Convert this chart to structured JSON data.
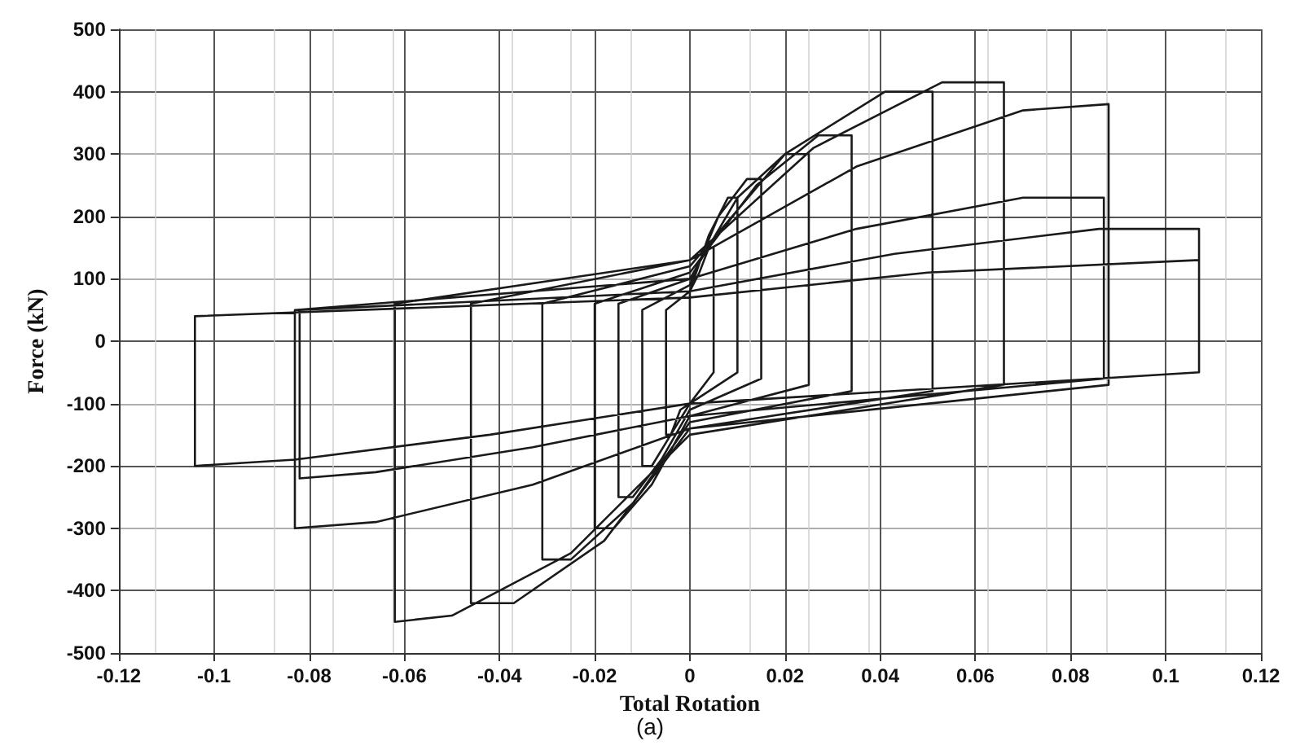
{
  "chart_data": {
    "type": "line",
    "xlabel": "Total Rotation",
    "ylabel": "Force (kN)",
    "annotations": [
      "(a)"
    ],
    "xlim": [
      -0.12,
      0.12
    ],
    "xticks": [
      -0.12,
      -0.1,
      -0.08,
      -0.06,
      -0.04,
      -0.02,
      0,
      0.02,
      0.04,
      0.06,
      0.08,
      0.1,
      0.12
    ],
    "ylim": [
      -500,
      500
    ],
    "yticks": [
      -500,
      -400,
      -300,
      -200,
      -100,
      0,
      100,
      200,
      300,
      400,
      500
    ],
    "grid": true,
    "marker": "none",
    "line_style": "solid",
    "series": [
      {
        "color": "#1a1a1a",
        "x": [
          0,
          0,
          0.002,
          0.004,
          0.005,
          0.005,
          0,
          -0.002,
          -0.004,
          -0.005,
          -0.005,
          0,
          0.004,
          0.008,
          0.01,
          0.01,
          0,
          -0.004,
          -0.008,
          -0.01,
          -0.01,
          0,
          0.006,
          0.012,
          0.015,
          0.015,
          0,
          -0.006,
          -0.012,
          -0.015,
          -0.015,
          0,
          0.01,
          0.02,
          0.025,
          0.025,
          0,
          -0.008,
          -0.016,
          -0.02,
          -0.02,
          0,
          0.014,
          0.027,
          0.034,
          0.034,
          0,
          -0.012,
          -0.025,
          -0.031,
          -0.031,
          0,
          0.02,
          0.041,
          0.051,
          0.051,
          0,
          -0.018,
          -0.037,
          -0.046,
          -0.046,
          0,
          0.026,
          0.053,
          0.066,
          0.066,
          0,
          -0.025,
          -0.05,
          -0.062,
          -0.062,
          0,
          0.035,
          0.07,
          0.088,
          0.088,
          0,
          -0.033,
          -0.066,
          -0.083,
          -0.083,
          0,
          0.035,
          0.07,
          0.087,
          0.087,
          0,
          -0.033,
          -0.066,
          -0.082,
          -0.082,
          0,
          0.043,
          0.086,
          0.107,
          0.107,
          0,
          -0.042,
          -0.083,
          -0.104,
          -0.104,
          0,
          0.05,
          0.107
        ],
        "values": [
          0,
          80,
          110,
          150,
          150,
          -50,
          -100,
          -110,
          -150,
          -150,
          50,
          80,
          170,
          230,
          230,
          -50,
          -100,
          -150,
          -200,
          -200,
          50,
          90,
          200,
          260,
          260,
          -60,
          -110,
          -190,
          -250,
          -250,
          60,
          100,
          230,
          300,
          300,
          -70,
          -120,
          -230,
          -300,
          -300,
          60,
          110,
          250,
          330,
          330,
          -80,
          -130,
          -260,
          -350,
          -350,
          60,
          120,
          300,
          400,
          400,
          -80,
          -140,
          -320,
          -420,
          -420,
          60,
          130,
          310,
          415,
          415,
          -70,
          -150,
          -340,
          -440,
          -450,
          60,
          130,
          280,
          370,
          380,
          -70,
          -140,
          -230,
          -290,
          -300,
          50,
          100,
          180,
          230,
          230,
          -60,
          -120,
          -170,
          -210,
          -220,
          50,
          80,
          140,
          180,
          180,
          -50,
          -100,
          -150,
          -190,
          -200,
          40,
          70,
          110,
          130
        ]
      }
    ]
  }
}
